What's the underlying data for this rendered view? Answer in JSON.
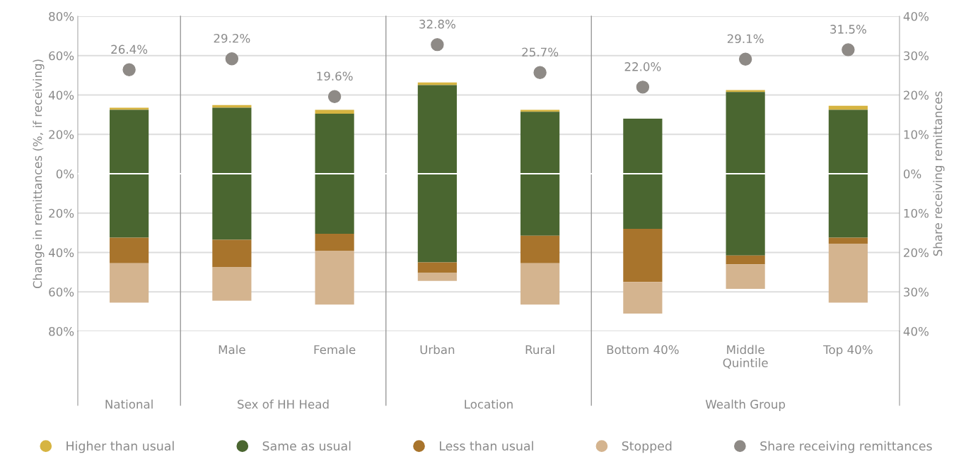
{
  "chart_data": {
    "type": "bar",
    "categories": [
      null,
      "Male",
      "Female",
      "Urban",
      "Rural",
      "Bottom 40%",
      "Middle Quintile",
      "Top 40%"
    ],
    "ylabel": "Change in remittances (%, if receiving)",
    "y2label": "Share receiving remittances",
    "series": [
      {
        "name": "Higher than usual",
        "color": "#d6b441",
        "base": [
          32.5,
          33.5,
          30.5,
          45,
          31.5,
          null,
          41.5,
          32.5
        ],
        "values": [
          1,
          1.4,
          2,
          1.4,
          1,
          null,
          1,
          2
        ]
      },
      {
        "name": "Same as usual",
        "color": "#4a6630",
        "base": [
          -32.5,
          -33.5,
          -30.5,
          -45,
          -31.5,
          -28,
          -41.5,
          -32.5
        ],
        "values": [
          65,
          67,
          61,
          90,
          63,
          56,
          83,
          65
        ]
      },
      {
        "name": "Less than usual",
        "color": "#a8742c",
        "base": [
          -32.5,
          -33.5,
          -30.5,
          -45,
          -31.5,
          -28,
          -41.5,
          -32.5
        ],
        "values": [
          -13,
          -14,
          -8.6,
          -5.4,
          -14,
          -27,
          -4.5,
          -3
        ]
      },
      {
        "name": "Stopped",
        "color": "#d4b48f",
        "base": [
          -45.5,
          -47.5,
          -39.1,
          -50.4,
          -45.5,
          -55,
          -46,
          -35.5
        ],
        "values": [
          -20,
          -17,
          -27.4,
          -4,
          -21,
          -16,
          -12.5,
          -30
        ]
      },
      {
        "name": "Share receiving remittances",
        "type": "scatter",
        "axis": "y2",
        "marker": "circle",
        "color": "#8e8a86",
        "values": [
          26.4,
          29.2,
          19.6,
          32.8,
          25.7,
          22.0,
          29.1,
          31.5
        ],
        "value_labels": [
          "26.4%",
          "29.2%",
          "19.6%",
          "32.8%",
          "25.7%",
          "22.0%",
          "29.1%",
          "31.5%"
        ]
      }
    ],
    "ylim": [
      -80,
      80
    ],
    "yticks": [
      {
        "value": -80,
        "label": "80%"
      },
      {
        "value": -60,
        "label": "60%"
      },
      {
        "value": -40,
        "label": "40%"
      },
      {
        "value": -20,
        "label": "20%"
      },
      {
        "value": 0,
        "label": "0%"
      },
      {
        "value": 20,
        "label": "20%"
      },
      {
        "value": 40,
        "label": "40%"
      },
      {
        "value": 60,
        "label": "60%"
      },
      {
        "value": 80,
        "label": "80%"
      }
    ],
    "y2lim": [
      -40,
      40
    ],
    "y2ticks": [
      {
        "value": -40,
        "label": "40%"
      },
      {
        "value": -30,
        "label": "30%"
      },
      {
        "value": -20,
        "label": "20%"
      },
      {
        "value": -10,
        "label": "10%"
      },
      {
        "value": 0,
        "label": "0%"
      },
      {
        "value": 10,
        "label": "10%"
      },
      {
        "value": 20,
        "label": "20%"
      },
      {
        "value": 30,
        "label": "30%"
      },
      {
        "value": 40,
        "label": "40%"
      }
    ],
    "grid": "y",
    "legend": "bottom",
    "annotations": [
      "National",
      "Sex of HH Head",
      "Location",
      "Wealth Group"
    ]
  }
}
